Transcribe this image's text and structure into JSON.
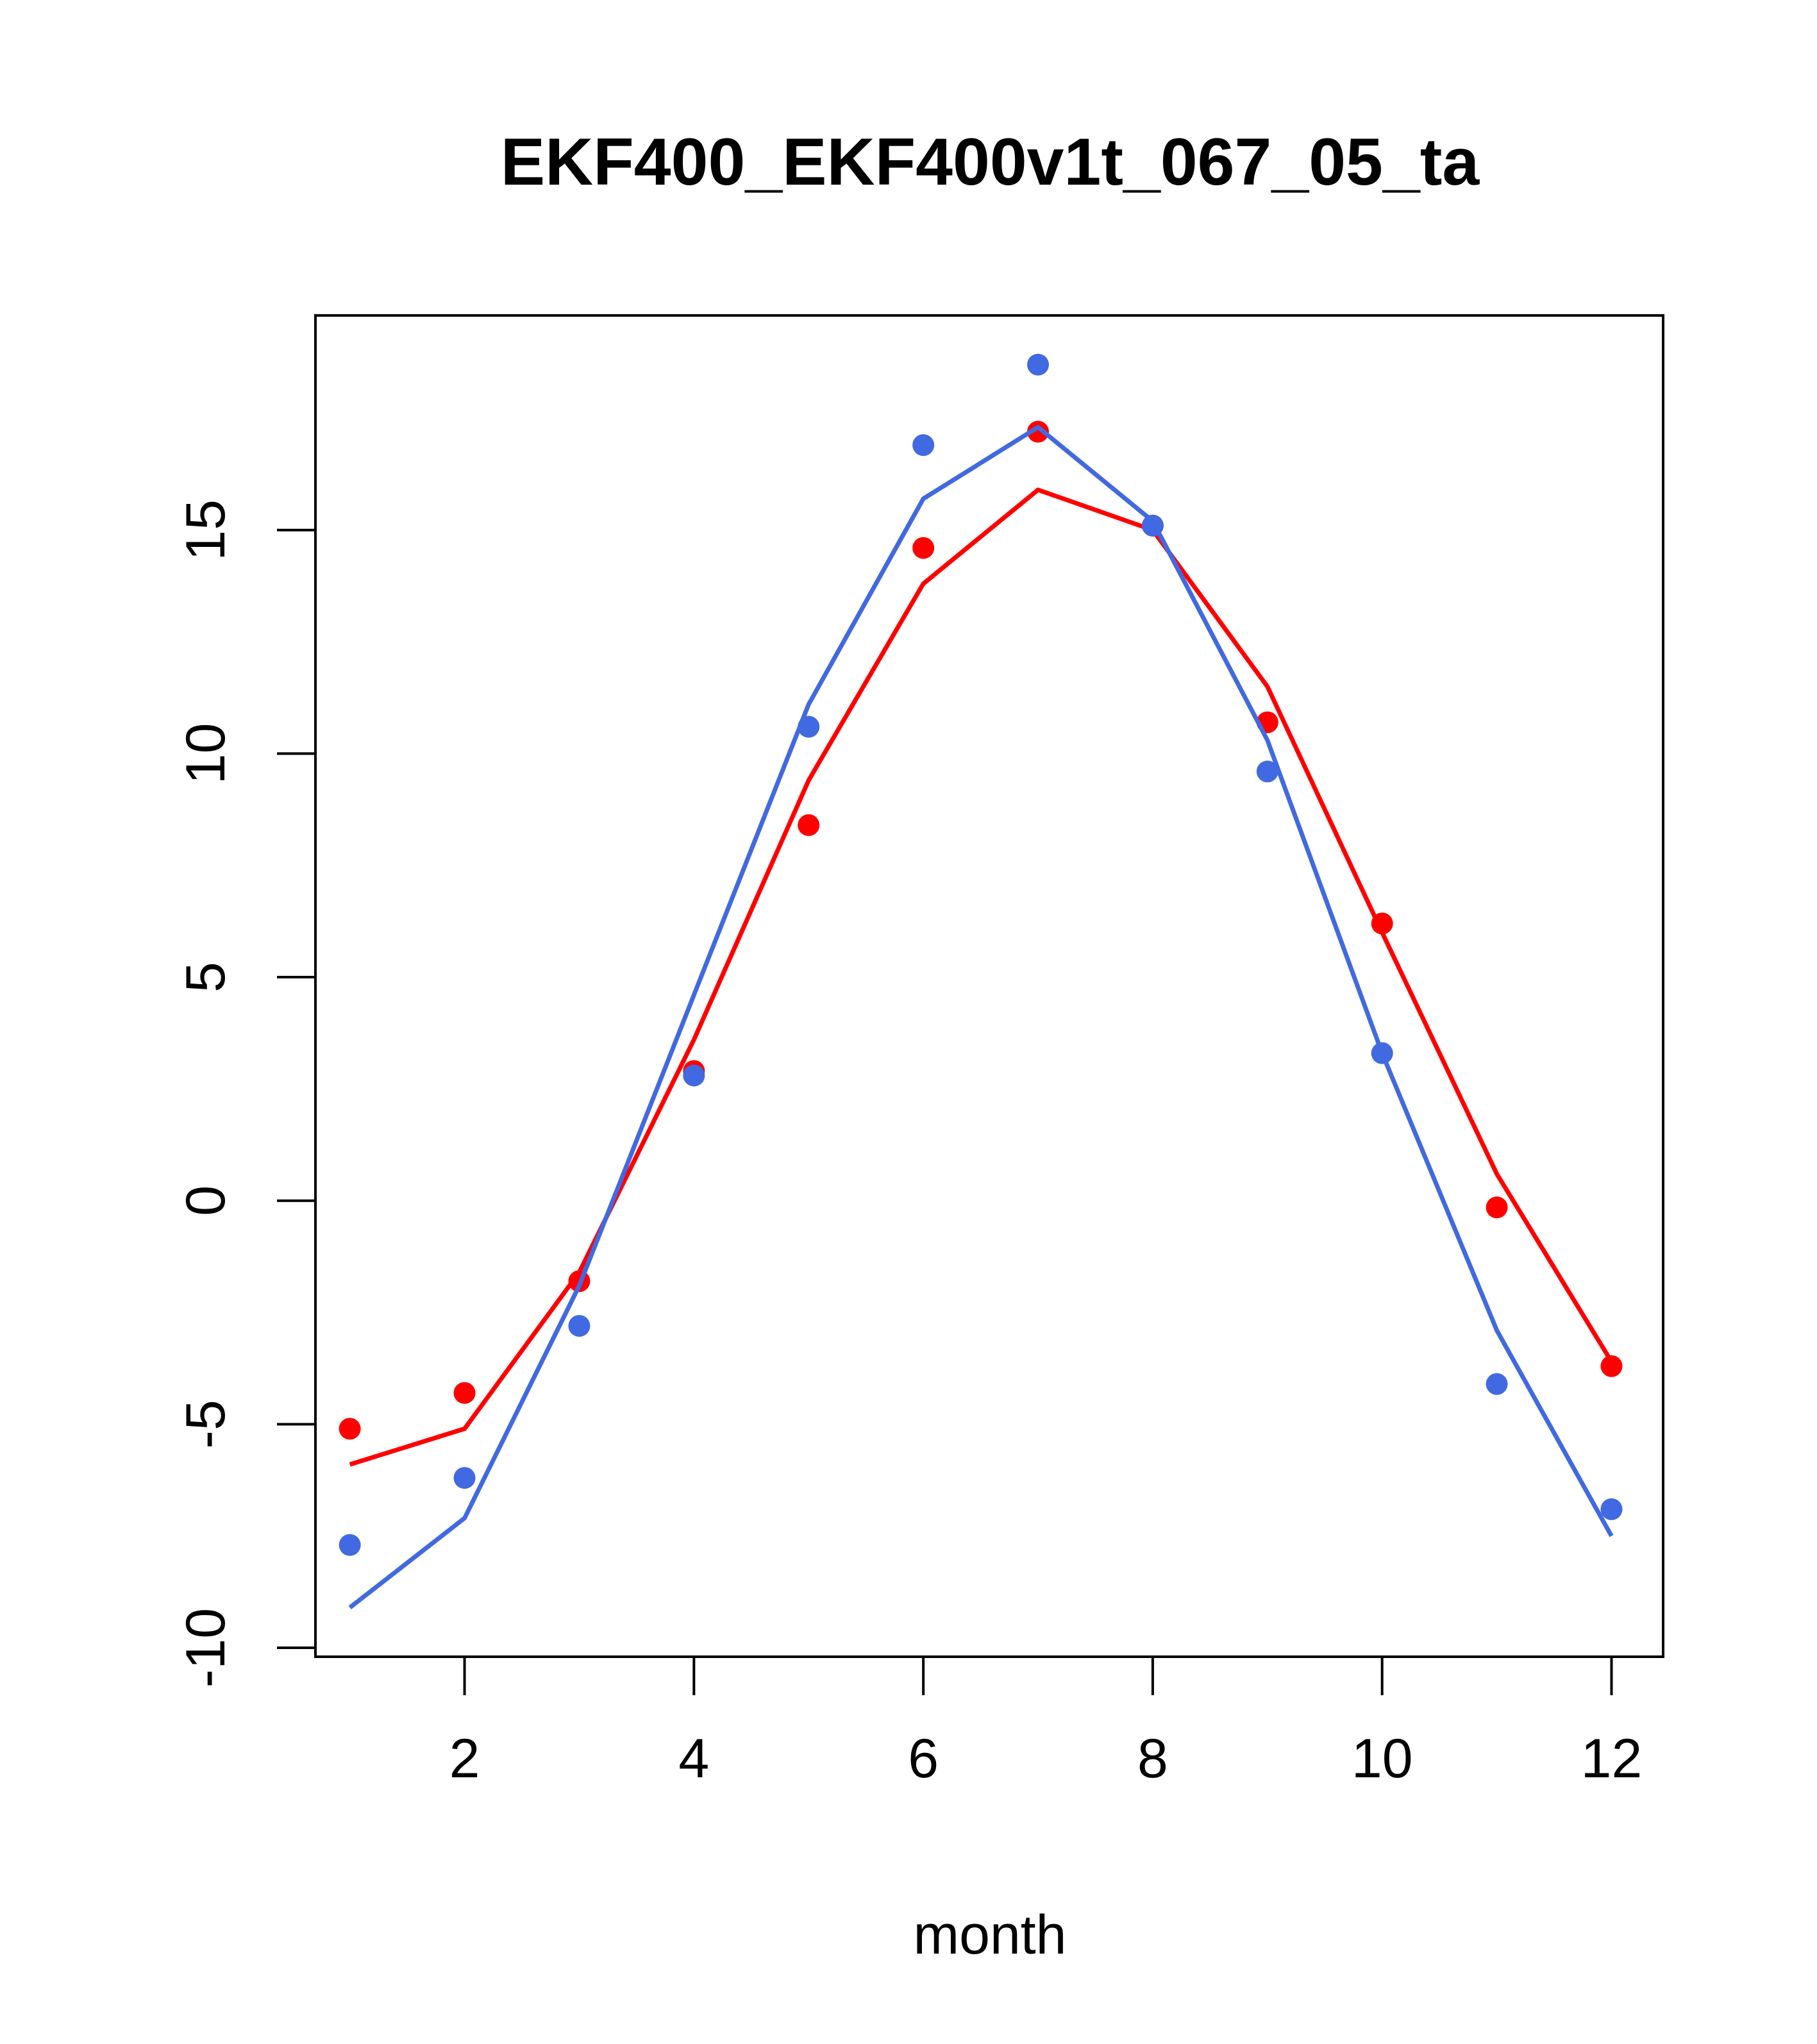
{
  "chart_data": {
    "type": "line",
    "title": "EKF400_EKF400v1t_067_05_ta",
    "xlabel": "month",
    "ylabel": "",
    "xlim": [
      0.7,
      12.45
    ],
    "ylim": [
      -10.2,
      19.8
    ],
    "xticks": [
      2,
      4,
      6,
      8,
      10,
      12
    ],
    "yticks": [
      -10,
      -5,
      0,
      5,
      10,
      15
    ],
    "x": [
      1,
      2,
      3,
      4,
      5,
      6,
      7,
      8,
      9,
      10,
      11,
      12
    ],
    "grid": false,
    "legend": "none",
    "series": [
      {
        "kind": "points",
        "color": "#ff0000",
        "values": [
          -5.1,
          -4.3,
          -1.8,
          2.9,
          8.4,
          14.6,
          17.2,
          15.1,
          10.7,
          6.2,
          -0.15,
          -3.7
        ]
      },
      {
        "kind": "line",
        "color": "#ff0000",
        "values": [
          -5.9,
          -5.1,
          -1.6,
          3.6,
          9.4,
          13.8,
          15.9,
          15.0,
          11.5,
          6.0,
          0.6,
          -3.6
        ]
      },
      {
        "kind": "points",
        "color": "#4169e1",
        "values": [
          -7.7,
          -6.2,
          -2.8,
          2.8,
          10.6,
          16.9,
          18.7,
          15.1,
          9.6,
          3.3,
          -4.1,
          -6.9
        ]
      },
      {
        "kind": "line",
        "color": "#4169e1",
        "values": [
          -9.1,
          -7.1,
          -1.9,
          4.6,
          11.1,
          15.7,
          17.3,
          15.2,
          10.3,
          3.3,
          -2.9,
          -7.5
        ]
      }
    ]
  }
}
